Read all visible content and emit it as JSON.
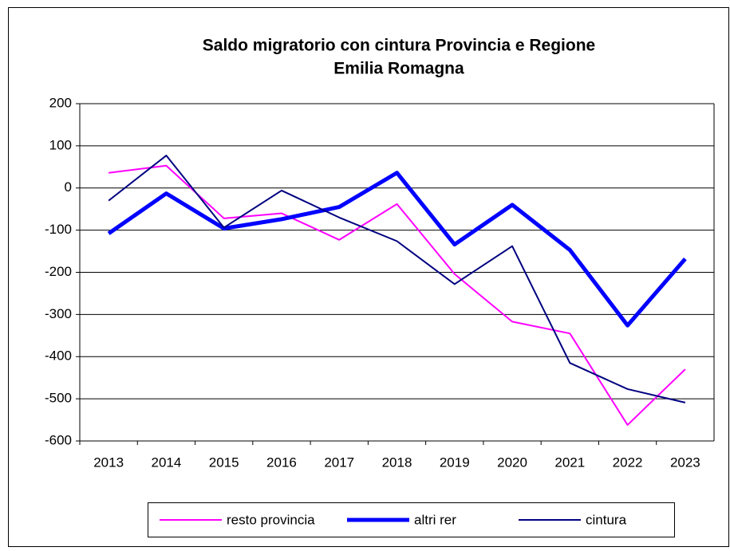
{
  "chart_data": {
    "type": "line",
    "title": "Saldo migratorio con cintura Provincia e Regione",
    "subtitle": "Emilia Romagna",
    "categories": [
      "2013",
      "2014",
      "2015",
      "2016",
      "2017",
      "2018",
      "2019",
      "2020",
      "2021",
      "2022",
      "2023"
    ],
    "series": [
      {
        "name": "resto provincia",
        "color": "#ff00ff",
        "values": [
          36,
          53,
          -72,
          -60,
          -123,
          -38,
          -204,
          -317,
          -345,
          -562,
          -430
        ]
      },
      {
        "name": "altri rer",
        "color": "#0000ff",
        "values": [
          -108,
          -13,
          -96,
          -74,
          -45,
          36,
          -134,
          -40,
          -147,
          -326,
          -168
        ]
      },
      {
        "name": "cintura",
        "color": "#000080",
        "values": [
          -30,
          77,
          -94,
          -6,
          -70,
          -126,
          -228,
          -138,
          -415,
          -477,
          -509
        ]
      }
    ],
    "ylim": [
      -600,
      200
    ],
    "yticks": [
      -600,
      -500,
      -400,
      -300,
      -200,
      -100,
      0,
      100,
      200
    ],
    "grid": true,
    "legend": "bottom"
  }
}
